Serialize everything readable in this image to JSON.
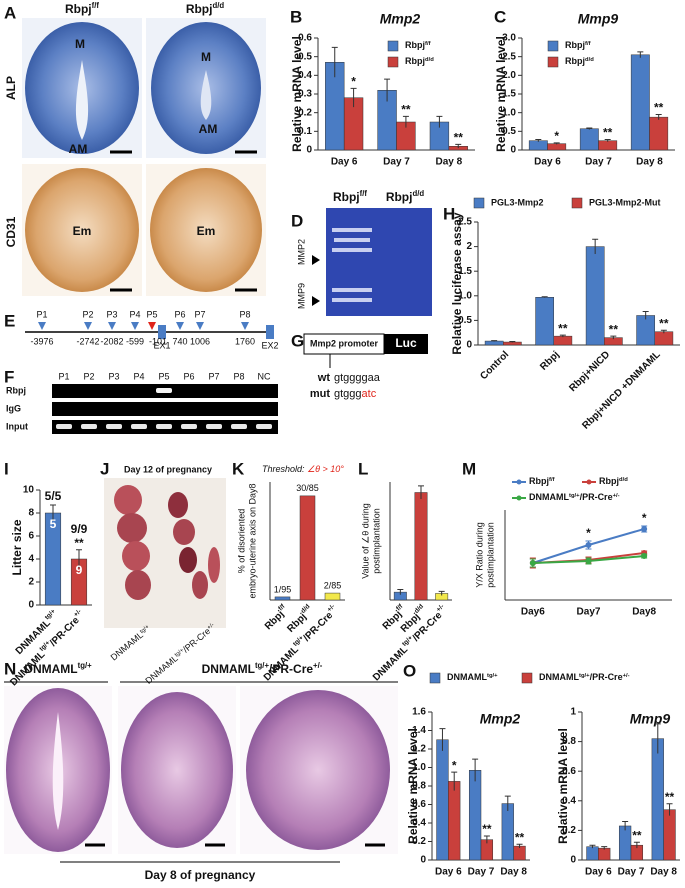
{
  "figures": {
    "A": {
      "label": "A",
      "columns": [
        [
          "Rbpj",
          "f/f"
        ],
        [
          "Rbpj",
          "d/d"
        ]
      ],
      "rows": [
        "ALP",
        "CD31"
      ],
      "marks": [
        "M",
        "AM",
        "M",
        "AM",
        "Em",
        "Em"
      ]
    },
    "D": {
      "label": "D",
      "columns": [
        [
          "Rbpj",
          "f/f"
        ],
        [
          "Rbpj",
          "d/d"
        ]
      ],
      "bands": [
        "MMP2",
        "MMP9"
      ]
    },
    "E": {
      "label": "E",
      "sites": [
        "P1",
        "P2",
        "P3",
        "P4",
        "P5",
        "P6",
        "P7",
        "P8"
      ],
      "positions": [
        "-3976",
        "-2742",
        "-2082",
        "-599",
        "-101",
        "740",
        "1006",
        "1760"
      ],
      "exons": [
        "EX1",
        "EX2"
      ]
    },
    "F": {
      "label": "F",
      "lanes": [
        "P1",
        "P2",
        "P3",
        "P4",
        "P5",
        "P6",
        "P7",
        "P8",
        "NC"
      ],
      "rows": [
        "Rbpj",
        "IgG",
        "Input"
      ]
    },
    "G": {
      "label": "G",
      "promoter": "Mmp2 promoter",
      "reporter": "Luc",
      "wt": [
        "wt",
        "gtggggaa"
      ],
      "mut": [
        "mut",
        "gtggg",
        "atc"
      ]
    },
    "J": {
      "label": "J",
      "title": "Day 12 of pregnancy",
      "groups": [
        [
          "DNMAML",
          "tg/+"
        ],
        [
          "DNMAML",
          "tg/+",
          "/PR-Cre",
          "+/-"
        ]
      ]
    },
    "N": {
      "label": "N",
      "groups": [
        [
          "DNMAML",
          "tg/+"
        ],
        [
          "DNMAML",
          "tg/+",
          "/PR-Cre",
          "+/-"
        ]
      ],
      "caption": "Day 8 of pregnancy"
    }
  },
  "chart_data": [
    {
      "type": "bar",
      "panel": "B",
      "title": "Mmp2",
      "ylabel": "Relative mRNA level",
      "categories": [
        "Day 6",
        "Day 7",
        "Day 8"
      ],
      "ylim": [
        0,
        0.6
      ],
      "yticks": [
        0,
        0.1,
        0.2,
        0.3,
        0.4,
        0.5,
        0.6
      ],
      "series": [
        {
          "name": [
            "Rbpj",
            "f/f"
          ],
          "color": "#4a7cc4",
          "values": [
            0.47,
            0.32,
            0.15
          ],
          "errors": [
            0.08,
            0.06,
            0.03
          ]
        },
        {
          "name": [
            "Rbpj",
            "d/d"
          ],
          "color": "#c9403c",
          "values": [
            0.28,
            0.15,
            0.02
          ],
          "errors": [
            0.05,
            0.03,
            0.01
          ],
          "sig": [
            "*",
            "**",
            "**"
          ]
        }
      ]
    },
    {
      "type": "bar",
      "panel": "C",
      "title": "Mmp9",
      "ylabel": "Relative mRNA level",
      "categories": [
        "Day 6",
        "Day 7",
        "Day 8"
      ],
      "ylim": [
        0,
        3
      ],
      "yticks": [
        0,
        0.5,
        {
          "value": 1,
          "label": "1.0"
        },
        1.5,
        {
          "value": 2,
          "label": "2.0"
        },
        2.5,
        {
          "value": 3,
          "label": "3.0"
        }
      ],
      "series": [
        {
          "name": [
            "Rbpj",
            "f/f"
          ],
          "color": "#4a7cc4",
          "values": [
            0.25,
            0.57,
            2.55
          ],
          "errors": [
            0.03,
            0.02,
            0.08
          ]
        },
        {
          "name": [
            "Rbpj",
            "d/d"
          ],
          "color": "#c9403c",
          "values": [
            0.17,
            0.25,
            0.88
          ],
          "errors": [
            0.02,
            0.03,
            0.07
          ],
          "sig": [
            "*",
            "**",
            "**"
          ]
        }
      ]
    },
    {
      "type": "bar",
      "panel": "H",
      "ylabel": "Relative luciferase assay",
      "categories": [
        "Control",
        "Rbpj",
        "Rbpj+NICD",
        "Rbpj+NICD +DNMAML"
      ],
      "ylim": [
        0,
        2.5
      ],
      "yticks": [
        0,
        0.5,
        {
          "value": 1,
          "label": "1.0"
        },
        1.5,
        2,
        2.5
      ],
      "series": [
        {
          "name": "PGL3-Mmp2",
          "color": "#4a7cc4",
          "values": [
            0.08,
            0.97,
            2.0,
            0.6
          ],
          "errors": [
            0.01,
            0.01,
            0.15,
            0.08
          ]
        },
        {
          "name": "PGL3-Mmp2-Mut",
          "color": "#c9403c",
          "values": [
            0.06,
            0.18,
            0.15,
            0.27
          ],
          "errors": [
            0.01,
            0.02,
            0.03,
            0.03
          ],
          "sig": [
            null,
            "**",
            "**",
            "**"
          ]
        }
      ]
    },
    {
      "type": "bar",
      "panel": "I",
      "ylabel": "Litter size",
      "categories": [
        [
          "DNMAML",
          "tg/+"
        ],
        [
          "DNMAML",
          "tg/+",
          "/PR-Cre",
          "+/-"
        ]
      ],
      "ylim": [
        0,
        10
      ],
      "yticks": [
        0,
        2,
        4,
        6,
        8,
        10
      ],
      "values": [
        8,
        4
      ],
      "errors": [
        0.7,
        0.8
      ],
      "colors": [
        "#4a7cc4",
        "#c9403c"
      ],
      "n_labels": [
        "5",
        "9"
      ],
      "sig": [
        null,
        "**"
      ],
      "ratio_labels": [
        "5/5",
        "9/9"
      ]
    },
    {
      "type": "bar",
      "panel": "K",
      "threshold": [
        "Threshold: ",
        "∠θ > 10°"
      ],
      "ylabel_lines": [
        "% of disoriented",
        "embryo-uterine axis on Day8"
      ],
      "categories": [
        [
          "Rbpj",
          "f/f"
        ],
        [
          "Rbpj",
          "d/d"
        ],
        [
          "DNMAML",
          "tg/+",
          "/PR-Cre",
          "+/-"
        ]
      ],
      "ylim": [
        0,
        40
      ],
      "values": [
        1.05,
        35.3,
        2.35
      ],
      "value_labels": [
        "1/95",
        "30/85",
        "2/85"
      ],
      "colors": [
        "#4a7cc4",
        "#c9403c",
        "#f2e84b"
      ]
    },
    {
      "type": "bar",
      "panel": "L",
      "ylabel_lines": [
        "Value of ∠θ during",
        "postimplantation"
      ],
      "categories": [
        [
          "Rbpj",
          "f/f"
        ],
        [
          "Rbpj",
          "d/d"
        ],
        [
          "DNMAML",
          "tg/+",
          "/PR-Cre",
          "+/-"
        ]
      ],
      "ylim": [
        0,
        45
      ],
      "values": [
        3,
        41,
        2.5
      ],
      "errors": [
        1,
        2.5,
        0.8
      ],
      "colors": [
        "#4a7cc4",
        "#c9403c",
        "#f2e84b"
      ]
    },
    {
      "type": "line",
      "panel": "M",
      "ylabel_lines": [
        "Y/X Ratio during",
        "postimplantation"
      ],
      "categories": [
        "Day6",
        "Day7",
        "Day8"
      ],
      "ylim": [
        0.6,
        1.5
      ],
      "series": [
        {
          "name": [
            "Rbpj",
            "f/f"
          ],
          "color": "#4a7cc4",
          "values": [
            0.97,
            1.15,
            1.31
          ],
          "errors": [
            0.04,
            0.04,
            0.03
          ],
          "sig": [
            null,
            "*",
            "*"
          ]
        },
        {
          "name": [
            "Rbpj",
            "d/d"
          ],
          "color": "#c9403c",
          "values": [
            0.97,
            1.0,
            1.07
          ],
          "errors": [
            0.05,
            0.03,
            0.02
          ]
        },
        {
          "name": [
            "DNMAML",
            "tg/+",
            "/PR-Cre",
            "+/-"
          ],
          "color": "#3aa845",
          "values": [
            0.97,
            0.99,
            1.04
          ],
          "errors": [
            0.04,
            0.03,
            0.02
          ]
        }
      ]
    },
    {
      "type": "bar",
      "panel": "O",
      "title": "Mmp2",
      "ylabel": "Relative mRNA level",
      "categories": [
        "Day 6",
        "Day 7",
        "Day 8"
      ],
      "ylim": [
        0,
        1.6
      ],
      "yticks": [
        0,
        0.2,
        0.4,
        0.6,
        0.8,
        {
          "value": 1,
          "label": "1.0"
        },
        1.2,
        1.4,
        1.6
      ],
      "series": [
        {
          "name": [
            "DNMAML",
            "tg/+"
          ],
          "color": "#4a7cc4",
          "values": [
            1.3,
            0.97,
            0.61
          ],
          "errors": [
            0.12,
            0.12,
            0.08
          ]
        },
        {
          "name": [
            "DNMAML",
            "tg/+",
            "/PR-Cre",
            "+/-"
          ],
          "color": "#c9403c",
          "values": [
            0.85,
            0.22,
            0.15
          ],
          "errors": [
            0.1,
            0.04,
            0.02
          ],
          "sig": [
            "*",
            "**",
            "**"
          ]
        }
      ]
    },
    {
      "type": "bar",
      "title": "Mmp9",
      "ylabel": "Relative mRNA level",
      "categories": [
        "Day 6",
        "Day 7",
        "Day 8"
      ],
      "ylim": [
        0,
        1
      ],
      "yticks": [
        0,
        0.2,
        0.4,
        0.6,
        0.8,
        1
      ],
      "series": [
        {
          "color": "#4a7cc4",
          "values": [
            0.09,
            0.23,
            0.82
          ],
          "errors": [
            0.01,
            0.03,
            0.1
          ]
        },
        {
          "color": "#c9403c",
          "values": [
            0.08,
            0.1,
            0.34
          ],
          "errors": [
            0.01,
            0.02,
            0.04
          ],
          "sig": [
            null,
            "**",
            "**"
          ]
        }
      ]
    }
  ]
}
